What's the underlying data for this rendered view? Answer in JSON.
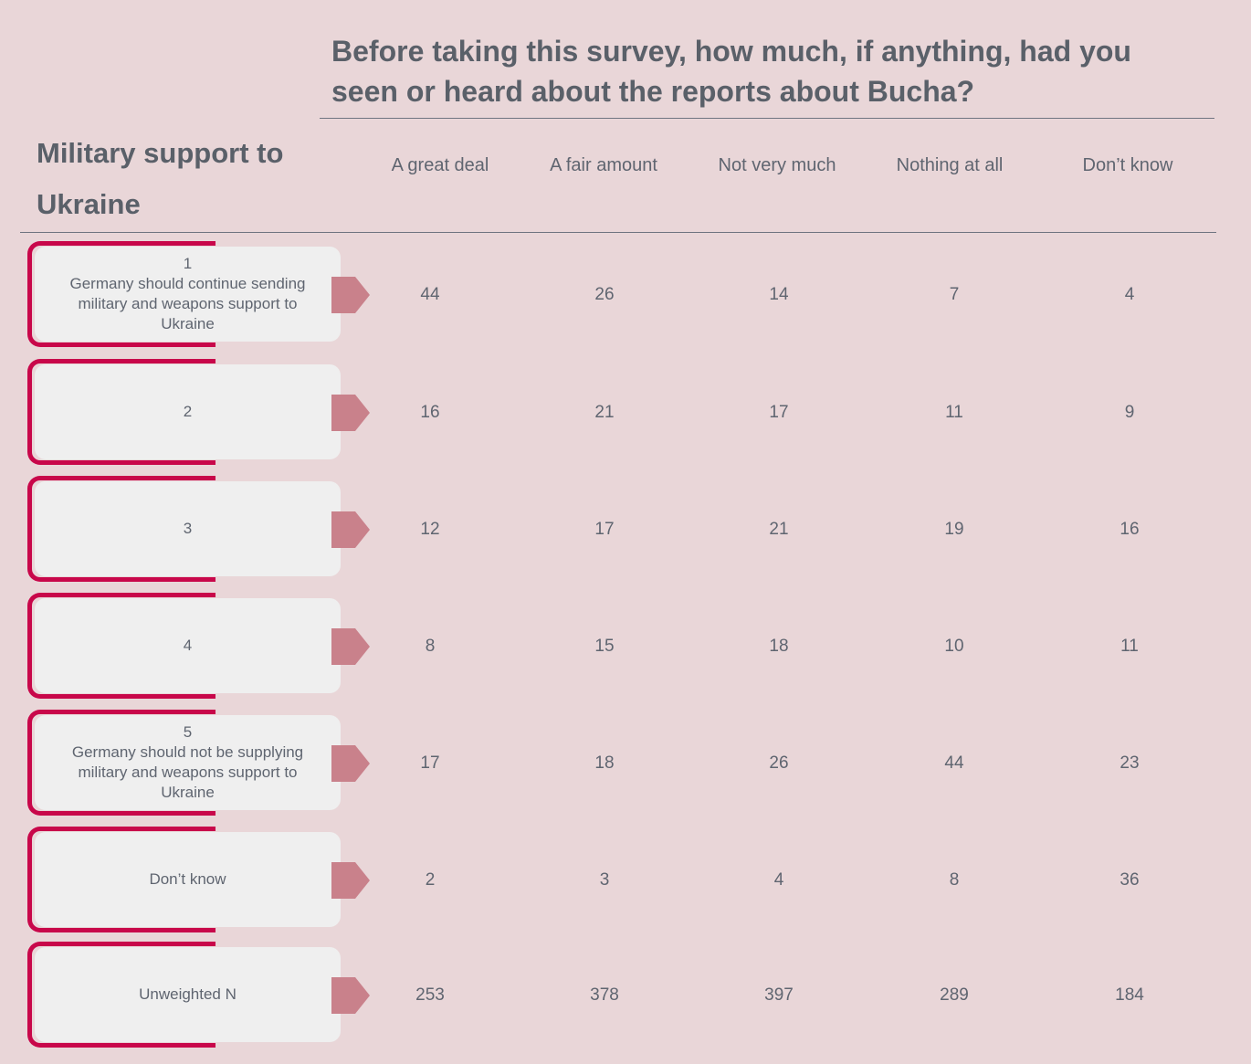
{
  "chart_data": {
    "type": "table",
    "title": "Before taking this survey, how much, if anything, had you seen or heard about the reports about Bucha?",
    "row_header": "Military support to Ukraine",
    "columns": [
      "A great deal",
      "A fair amount",
      "Not very much",
      "Nothing at all",
      "Don’t know"
    ],
    "rows": [
      {
        "label": "1\nGermany should continue sending military and weapons support to Ukraine",
        "values": [
          44,
          26,
          14,
          7,
          4
        ]
      },
      {
        "label": "2",
        "values": [
          16,
          21,
          17,
          11,
          9
        ]
      },
      {
        "label": "3",
        "values": [
          12,
          17,
          21,
          19,
          16
        ]
      },
      {
        "label": "4",
        "values": [
          8,
          15,
          18,
          10,
          11
        ]
      },
      {
        "label": "5\nGermany should not be supplying military and weapons support to Ukraine",
        "values": [
          17,
          18,
          26,
          44,
          23
        ]
      },
      {
        "label": "Don’t know",
        "values": [
          2,
          3,
          4,
          8,
          36
        ]
      },
      {
        "label": "Unweighted N",
        "values": [
          253,
          378,
          397,
          289,
          184
        ]
      }
    ]
  },
  "colors": {
    "background": "#e9d6d8",
    "frame": "#c8074a",
    "card": "#efefef",
    "arrow": "#c9818b",
    "text": "#5f6570"
  }
}
